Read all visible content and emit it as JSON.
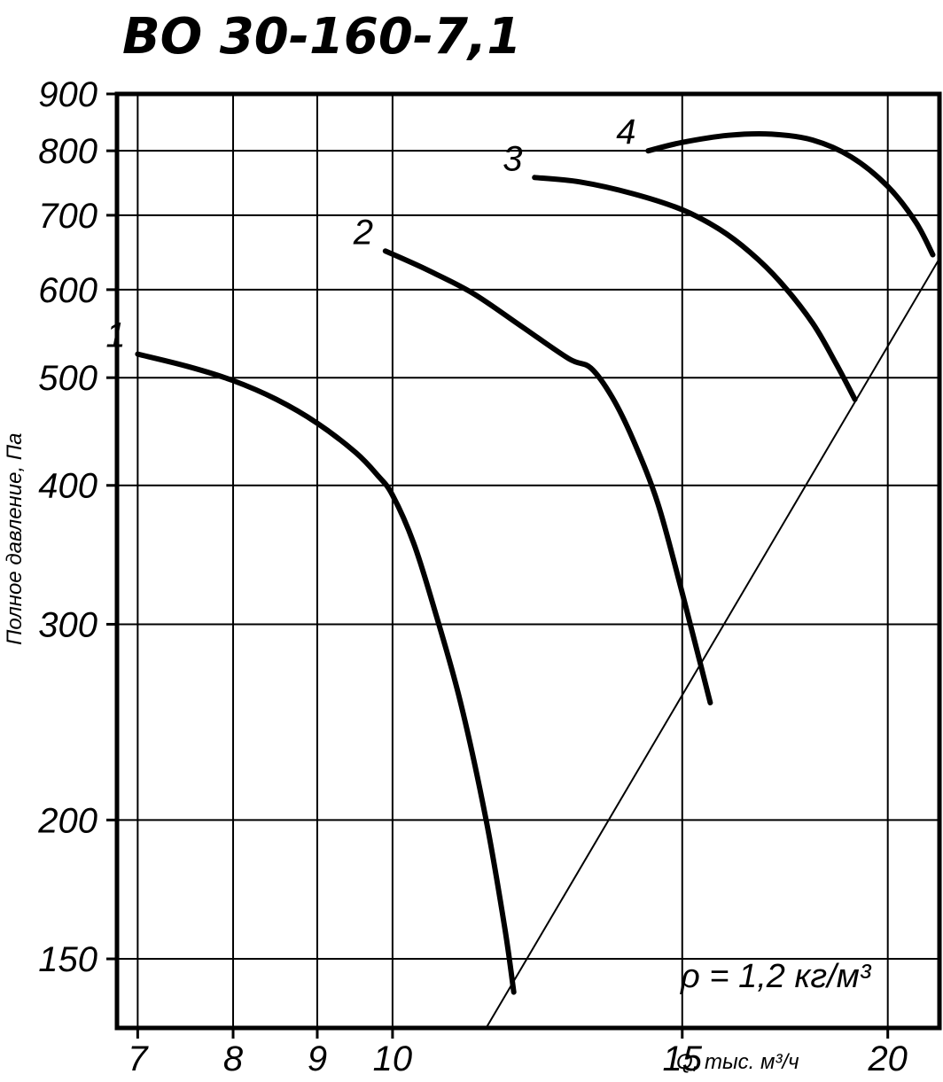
{
  "chart_data": {
    "type": "line",
    "title": "ВО 30-160-7,1",
    "xlabel": "Q, тыс. м³/ч",
    "ylabel": "Полное давление, Па",
    "annotation": "ρ = 1,2 кг/м³",
    "x_scale": "log",
    "y_scale": "log",
    "xlim": [
      6.8,
      21.5
    ],
    "ylim": [
      130,
      900
    ],
    "x_ticks": [
      "7",
      "8",
      "9",
      "10",
      "15",
      "20"
    ],
    "x_tick_values": [
      7,
      8,
      9,
      10,
      15,
      20
    ],
    "y_ticks": [
      "900",
      "800",
      "700",
      "600",
      "500",
      "400",
      "300",
      "200",
      "150"
    ],
    "y_tick_values": [
      900,
      800,
      700,
      600,
      500,
      400,
      300,
      200,
      150
    ],
    "grid": true,
    "series": [
      {
        "name": "1",
        "x": [
          7.0,
          7.5,
          8.0,
          8.5,
          9.0,
          9.5,
          9.8,
          10.0,
          10.3,
          10.6,
          11.0,
          11.4,
          11.7,
          11.85
        ],
        "y": [
          525,
          512,
          497,
          478,
          455,
          428,
          408,
          392,
          355,
          310,
          255,
          200,
          160,
          140
        ]
      },
      {
        "name": "2",
        "x": [
          9.9,
          10.5,
          11.2,
          12.0,
          12.8,
          13.2,
          13.6,
          14.0,
          14.5,
          15.0,
          15.4,
          15.6
        ],
        "y": [
          650,
          625,
          595,
          555,
          520,
          510,
          480,
          440,
          385,
          320,
          275,
          255
        ]
      },
      {
        "name": "3",
        "x": [
          12.2,
          13.0,
          14.0,
          15.0,
          15.8,
          16.5,
          17.2,
          18.0,
          18.6,
          19.1
        ],
        "y": [
          757,
          750,
          732,
          708,
          680,
          648,
          610,
          560,
          515,
          478
        ]
      },
      {
        "name": "4",
        "x": [
          14.3,
          15.0,
          16.0,
          17.0,
          18.0,
          19.0,
          20.0,
          20.8,
          21.3
        ],
        "y": [
          800,
          814,
          826,
          828,
          818,
          790,
          743,
          690,
          645
        ]
      }
    ],
    "boundary_line": {
      "x": [
        11.4,
        21.5
      ],
      "y": [
        130,
        640
      ]
    }
  }
}
